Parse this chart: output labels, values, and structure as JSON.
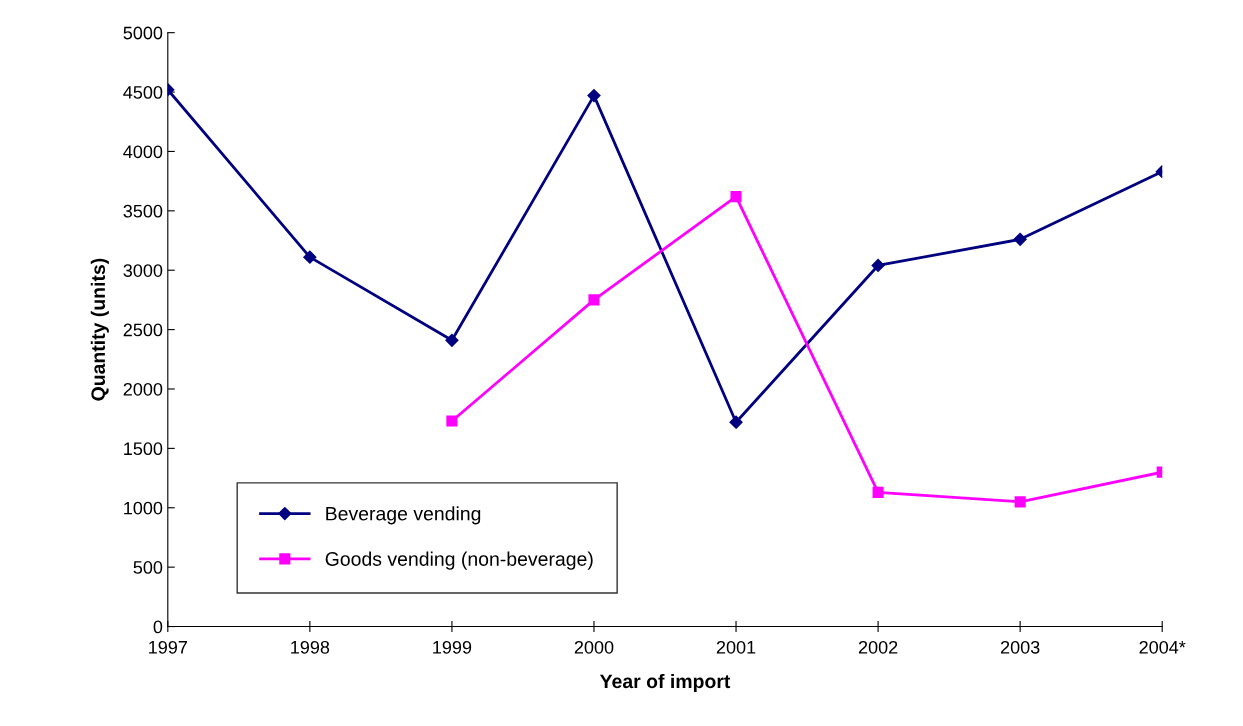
{
  "chart_data": {
    "type": "line",
    "xlabel": "Year of import",
    "ylabel": "Quantity (units)",
    "categories": [
      "1997",
      "1998",
      "1999",
      "2000",
      "2001",
      "2002",
      "2003",
      "2004*"
    ],
    "series": [
      {
        "name": "Beverage vending",
        "color": "#000080",
        "marker": "diamond",
        "values": [
          4520,
          3110,
          2410,
          4470,
          1720,
          3040,
          3260,
          3830
        ]
      },
      {
        "name": "Goods vending (non-beverage)",
        "color": "#ff00ff",
        "marker": "square",
        "values": [
          null,
          null,
          1730,
          2750,
          3620,
          1130,
          1050,
          1300
        ]
      }
    ],
    "ylim": [
      0,
      5000
    ],
    "yticks": [
      0,
      500,
      1000,
      1500,
      2000,
      2500,
      3000,
      3500,
      4000,
      4500,
      5000
    ],
    "grid": false,
    "legend": "bottom left",
    "line_style": "solid"
  }
}
